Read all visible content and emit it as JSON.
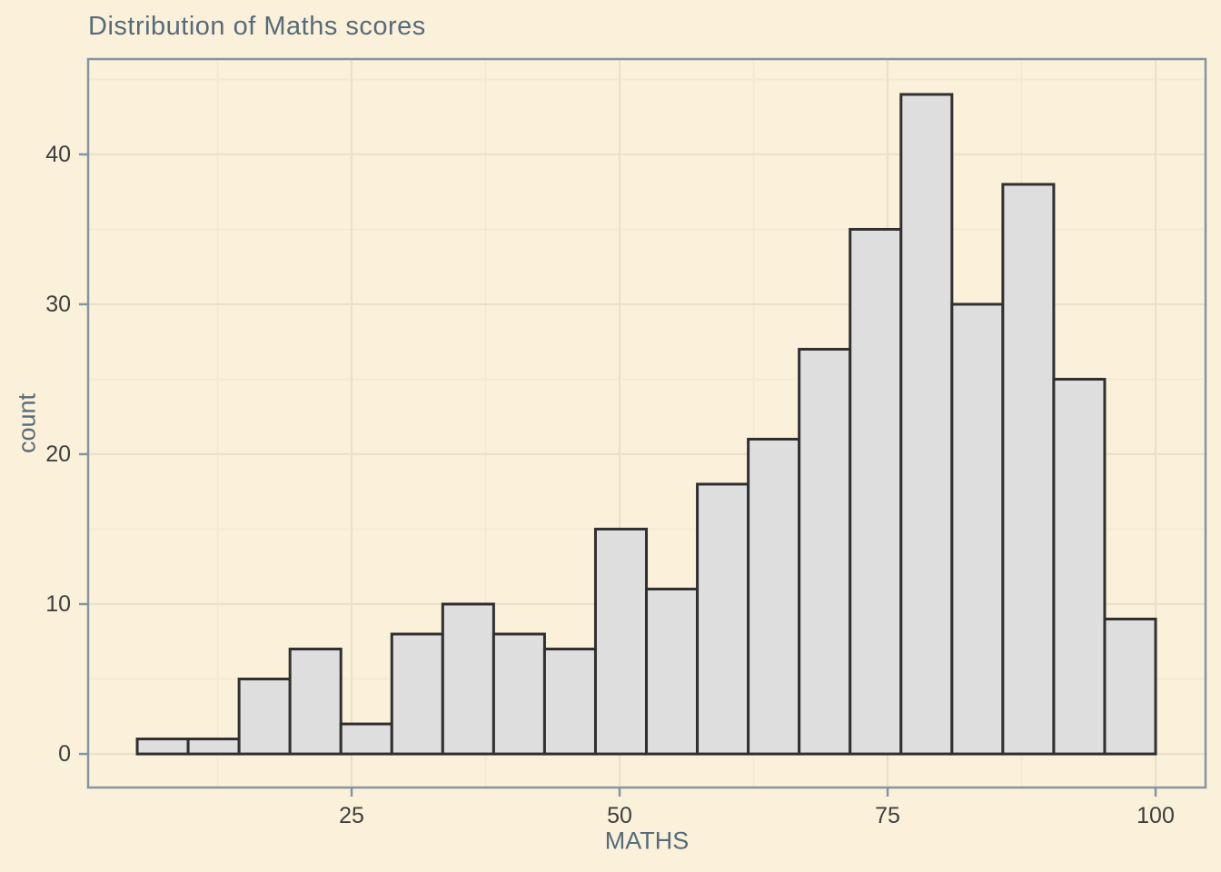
{
  "chart_data": {
    "type": "bar",
    "subtype": "histogram",
    "title": "Distribution of Maths scores",
    "xlabel": "MATHS",
    "ylabel": "count",
    "bins": {
      "start": 5,
      "width": 4.75,
      "end": 100,
      "count": 20
    },
    "bin_edges": [
      5,
      9.75,
      14.5,
      19.25,
      24,
      28.75,
      33.5,
      38.25,
      43,
      47.75,
      52.5,
      57.25,
      62,
      66.75,
      71.5,
      76.25,
      81,
      85.75,
      90.5,
      95.25,
      100
    ],
    "counts": [
      1,
      1,
      5,
      7,
      2,
      8,
      10,
      8,
      7,
      15,
      11,
      18,
      21,
      27,
      35,
      44,
      30,
      38,
      25,
      9
    ],
    "x_ticks": {
      "values": [
        25,
        50,
        75,
        100
      ],
      "labels": [
        "25",
        "50",
        "75",
        "100"
      ]
    },
    "y_ticks": {
      "values": [
        0,
        10,
        20,
        30,
        40
      ],
      "labels": [
        "0",
        "10",
        "20",
        "30",
        "40"
      ]
    },
    "x_minor_gridlines": [
      12.5,
      37.5,
      62.5,
      87.5
    ],
    "y_minor_gridlines": [
      5,
      15,
      25,
      35,
      45
    ],
    "xlim": [
      0.42,
      104.66
    ],
    "ylim": [
      -2.24,
      46.36
    ],
    "grid": true,
    "legend": false
  },
  "style": {
    "background": "#FBF1DA",
    "bar_fill": "#DEDEDE",
    "bar_stroke": "#303030",
    "grid_major": "#EAE1C9",
    "grid_minor": "#F2EAD5",
    "axis_line": "#8495A1",
    "title_color": "#566B7A",
    "axis_title_color": "#566B7A",
    "tick_label_color": "#3F3F3F"
  }
}
